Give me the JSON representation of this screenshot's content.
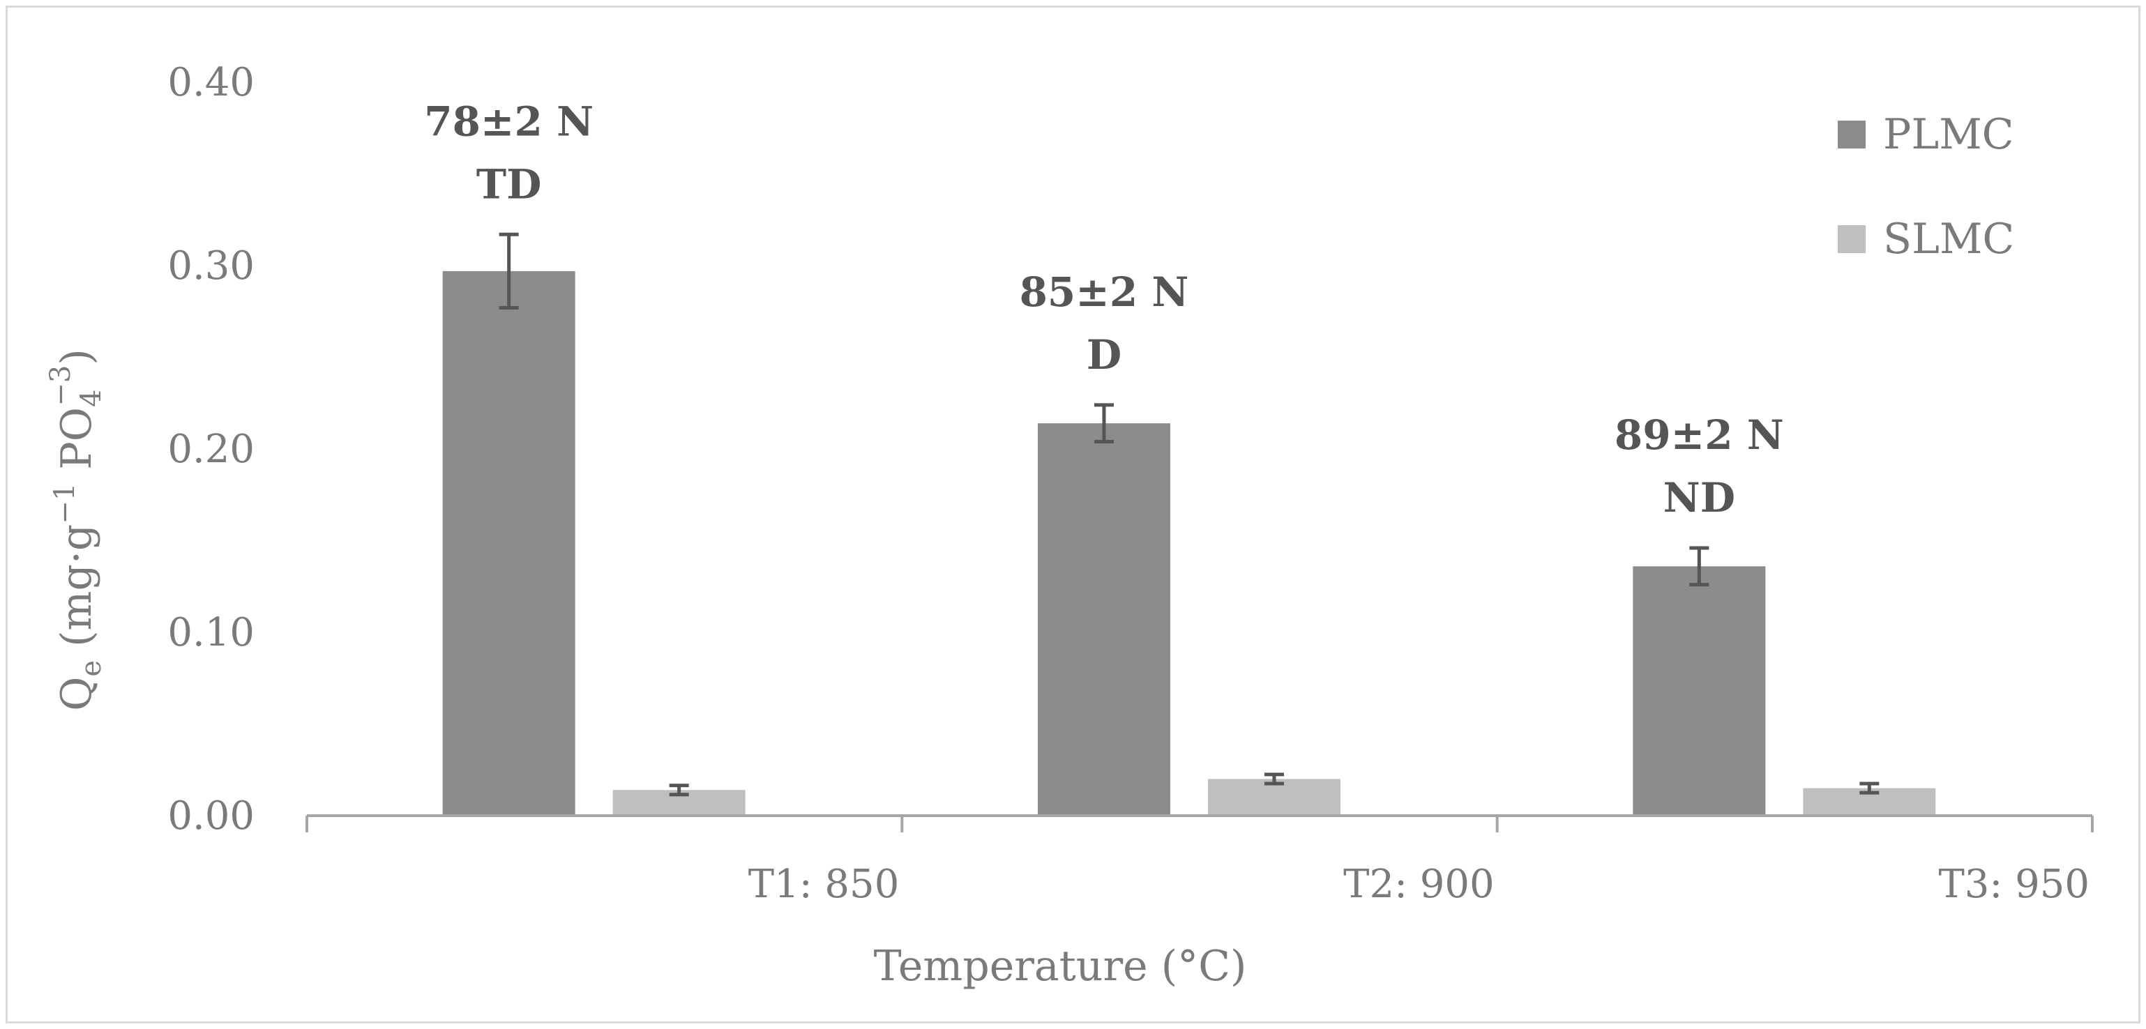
{
  "chart_data": {
    "type": "bar",
    "title": "",
    "xlabel": "Temperature (°C)",
    "ylabel": {
      "prefix": "Q",
      "prefix_sub": "e",
      "open": " (mg·g",
      "exp1": "−1",
      "middle": " PO",
      "sub2": "4",
      "exp2": "−3",
      "close": ")"
    },
    "categories": [
      "T1: 850",
      "T2: 900",
      "T3: 950"
    ],
    "ylim": [
      0,
      0.4
    ],
    "yticks": [
      "0.00",
      "0.10",
      "0.20",
      "0.30",
      "0.40"
    ],
    "series": [
      {
        "name": "PLMC",
        "color": "#8c8c8c",
        "values": [
          0.297,
          0.214,
          0.136
        ],
        "errors": [
          0.02,
          0.01,
          0.01
        ]
      },
      {
        "name": "SLMC",
        "color": "#bfbfbf",
        "values": [
          0.014,
          0.02,
          0.015
        ],
        "errors": [
          0.0025,
          0.0025,
          0.0025
        ]
      }
    ],
    "annotations": [
      {
        "line1": "78±2 N",
        "line2": "TD"
      },
      {
        "line1": "85±2 N",
        "line2": "D"
      },
      {
        "line1": "89±2 N",
        "line2": "ND"
      }
    ],
    "legend": "top-right",
    "grid": false
  }
}
